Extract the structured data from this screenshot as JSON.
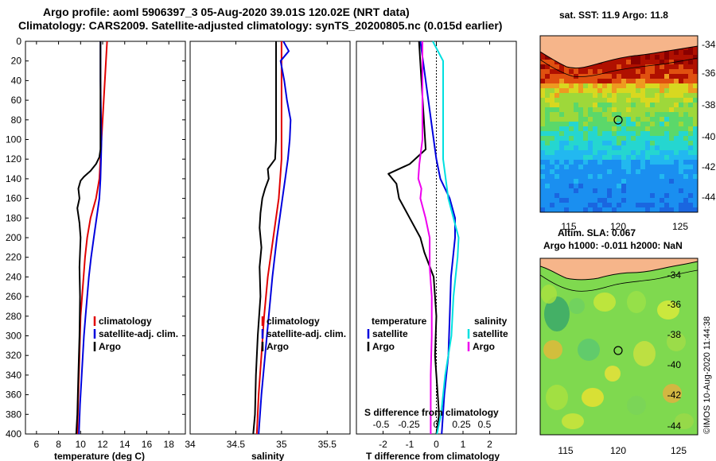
{
  "header": {
    "title_line1": "Argo profile: aoml 5906397_3 05-Aug-2020 39.01S 120.02E (NRT data)",
    "title_line2": "Climatology: CARS2009. Satellite-adjusted climatology: synTS_20200805.nc (0.015d earlier)"
  },
  "colors": {
    "climatology": "#e00000",
    "satellite": "#0000dd",
    "argo": "#000000",
    "salinity_satellite": "#00e0e0",
    "salinity_argo": "#ee00ee"
  },
  "chart_data": [
    {
      "type": "line",
      "name": "temperature-panel",
      "xlabel": "temperature (deg C)",
      "xlim": [
        5,
        19.5
      ],
      "xticks": [
        6,
        8,
        10,
        12,
        14,
        16,
        18
      ],
      "ylim": [
        400,
        0
      ],
      "yticks": [
        0,
        20,
        40,
        60,
        80,
        100,
        120,
        140,
        160,
        180,
        200,
        220,
        240,
        260,
        280,
        300,
        320,
        340,
        360,
        380,
        400
      ],
      "legend": [
        "climatology",
        "satellite-adj. clim.",
        "Argo"
      ],
      "series": [
        {
          "name": "climatology",
          "color_key": "climatology",
          "depth": [
            0,
            20,
            60,
            100,
            120,
            140,
            160,
            180,
            200,
            220,
            250,
            280,
            320,
            360,
            400
          ],
          "values": [
            12.4,
            12.3,
            12.1,
            11.9,
            11.8,
            11.7,
            11.4,
            10.9,
            10.6,
            10.4,
            10.2,
            10.0,
            9.9,
            9.8,
            9.7
          ]
        },
        {
          "name": "satellite-adj. clim.",
          "color_key": "satellite",
          "depth": [
            0,
            40,
            80,
            100,
            120,
            140,
            160,
            180,
            200,
            220,
            240,
            260,
            280,
            300,
            340,
            370,
            400
          ],
          "values": [
            11.8,
            11.8,
            11.85,
            11.9,
            11.85,
            11.8,
            11.7,
            11.45,
            11.2,
            10.95,
            10.75,
            10.6,
            10.45,
            10.3,
            10.1,
            9.95,
            9.85
          ]
        },
        {
          "name": "Argo",
          "color_key": "argo",
          "depth": [
            0,
            60,
            110,
            118,
            125,
            132,
            138,
            142,
            150,
            160,
            170,
            185,
            200,
            230,
            260,
            300,
            340,
            380,
            400
          ],
          "values": [
            11.8,
            11.8,
            11.8,
            11.7,
            11.4,
            10.9,
            10.3,
            10.0,
            9.8,
            9.9,
            9.7,
            9.9,
            10.0,
            9.9,
            9.95,
            9.9,
            9.8,
            9.7,
            9.6
          ]
        }
      ]
    },
    {
      "type": "line",
      "name": "salinity-panel",
      "xlabel": "salinity",
      "xlim": [
        34,
        35.75
      ],
      "xticks": [
        34,
        34.5,
        35,
        35.5
      ],
      "ylim": [
        400,
        0
      ],
      "legend": [
        "climatology",
        "satellite-adj. clim.",
        "Argo"
      ],
      "series": [
        {
          "name": "climatology",
          "color_key": "climatology",
          "depth": [
            0,
            60,
            120,
            160,
            200,
            240,
            280,
            320,
            360,
            400
          ],
          "values": [
            35.0,
            35.0,
            35.0,
            34.97,
            34.91,
            34.85,
            34.81,
            34.78,
            34.75,
            34.73
          ]
        },
        {
          "name": "satellite-adj. clim.",
          "color_key": "satellite",
          "depth": [
            0,
            10,
            20,
            40,
            60,
            80,
            100,
            120,
            140,
            160,
            180,
            200,
            240,
            280,
            320,
            360,
            400
          ],
          "values": [
            35.02,
            35.08,
            34.99,
            35.03,
            35.06,
            35.1,
            35.09,
            35.07,
            35.04,
            35.01,
            34.98,
            34.95,
            34.9,
            34.86,
            34.82,
            34.78,
            34.75
          ]
        },
        {
          "name": "Argo",
          "color_key": "argo",
          "depth": [
            0,
            100,
            120,
            130,
            140,
            150,
            160,
            175,
            190,
            210,
            230,
            260,
            300,
            340,
            380,
            400
          ],
          "values": [
            34.94,
            34.94,
            34.93,
            34.85,
            34.86,
            34.82,
            34.79,
            34.77,
            34.76,
            34.78,
            34.76,
            34.77,
            34.74,
            34.72,
            34.71,
            34.69
          ]
        }
      ]
    },
    {
      "type": "line",
      "name": "difference-panel",
      "xlabel": "T difference from climatology",
      "xlim": [
        -3,
        3
      ],
      "xticks": [
        -2,
        -1,
        0,
        1,
        2
      ],
      "secondary_xlabel": "S difference from climatology",
      "secondary_xticks": [
        "-0.5",
        "-0.25",
        "0",
        "0.25",
        "0.5"
      ],
      "ylim": [
        400,
        0
      ],
      "legend_left_title": "temperature",
      "legend_right_title": "salinity",
      "legend": [
        "satellite",
        "Argo"
      ],
      "series": [
        {
          "name": "temperature satellite",
          "color_key": "satellite",
          "depth": [
            0,
            100,
            120,
            140,
            160,
            180,
            200,
            240,
            280,
            320,
            360,
            400
          ],
          "values": [
            -0.6,
            -0.1,
            0.0,
            0.15,
            0.5,
            0.7,
            0.7,
            0.55,
            0.5,
            0.45,
            0.3,
            0.2
          ]
        },
        {
          "name": "temperature Argo",
          "color_key": "argo",
          "depth": [
            0,
            110,
            125,
            135,
            145,
            160,
            180,
            200,
            215,
            240,
            280,
            320,
            360,
            380,
            400
          ],
          "values": [
            -0.65,
            -0.4,
            -1.0,
            -1.8,
            -1.5,
            -1.4,
            -1.0,
            -0.6,
            -0.45,
            -0.1,
            0.0,
            -0.05,
            0.05,
            0.1,
            0.0
          ]
        },
        {
          "name": "salinity satellite",
          "color_key": "salinity_satellite",
          "depth": [
            0,
            20,
            40,
            80,
            120,
            160,
            200,
            220,
            260,
            300,
            340,
            380,
            400
          ],
          "values": [
            0.0,
            0.1,
            0.1,
            0.1,
            0.1,
            0.15,
            0.25,
            0.24,
            0.2,
            0.18,
            0.12,
            0.08,
            0.04
          ]
        },
        {
          "name": "salinity Argo",
          "color_key": "salinity_argo",
          "depth": [
            0,
            100,
            125,
            140,
            150,
            160,
            180,
            200,
            230,
            260,
            300,
            340,
            380,
            400
          ],
          "values": [
            -0.1,
            -0.1,
            -0.13,
            -0.14,
            -0.11,
            -0.12,
            -0.07,
            -0.03,
            -0.03,
            -0.01,
            -0.01,
            -0.02,
            -0.02,
            -0.02
          ]
        }
      ]
    }
  ],
  "maps": [
    {
      "name": "sst-map",
      "title": "sat. SST: 11.9 Argo: 11.8",
      "x_ticks": [
        "115",
        "120",
        "125"
      ],
      "y_ticks": [
        "-34",
        "-36",
        "-38",
        "-40",
        "-42",
        "-44"
      ]
    },
    {
      "name": "sla-map",
      "title_line1": "Altim. SLA: 0.067",
      "title_line2": "Argo h1000: -0.011 h2000: NaN",
      "x_ticks": [
        "115",
        "120",
        "125"
      ],
      "y_ticks": [
        "-34",
        "-36",
        "-38",
        "-40",
        "-42",
        "-44"
      ]
    }
  ],
  "credit": "©IMOS 10-Aug-2020 11:44:38"
}
